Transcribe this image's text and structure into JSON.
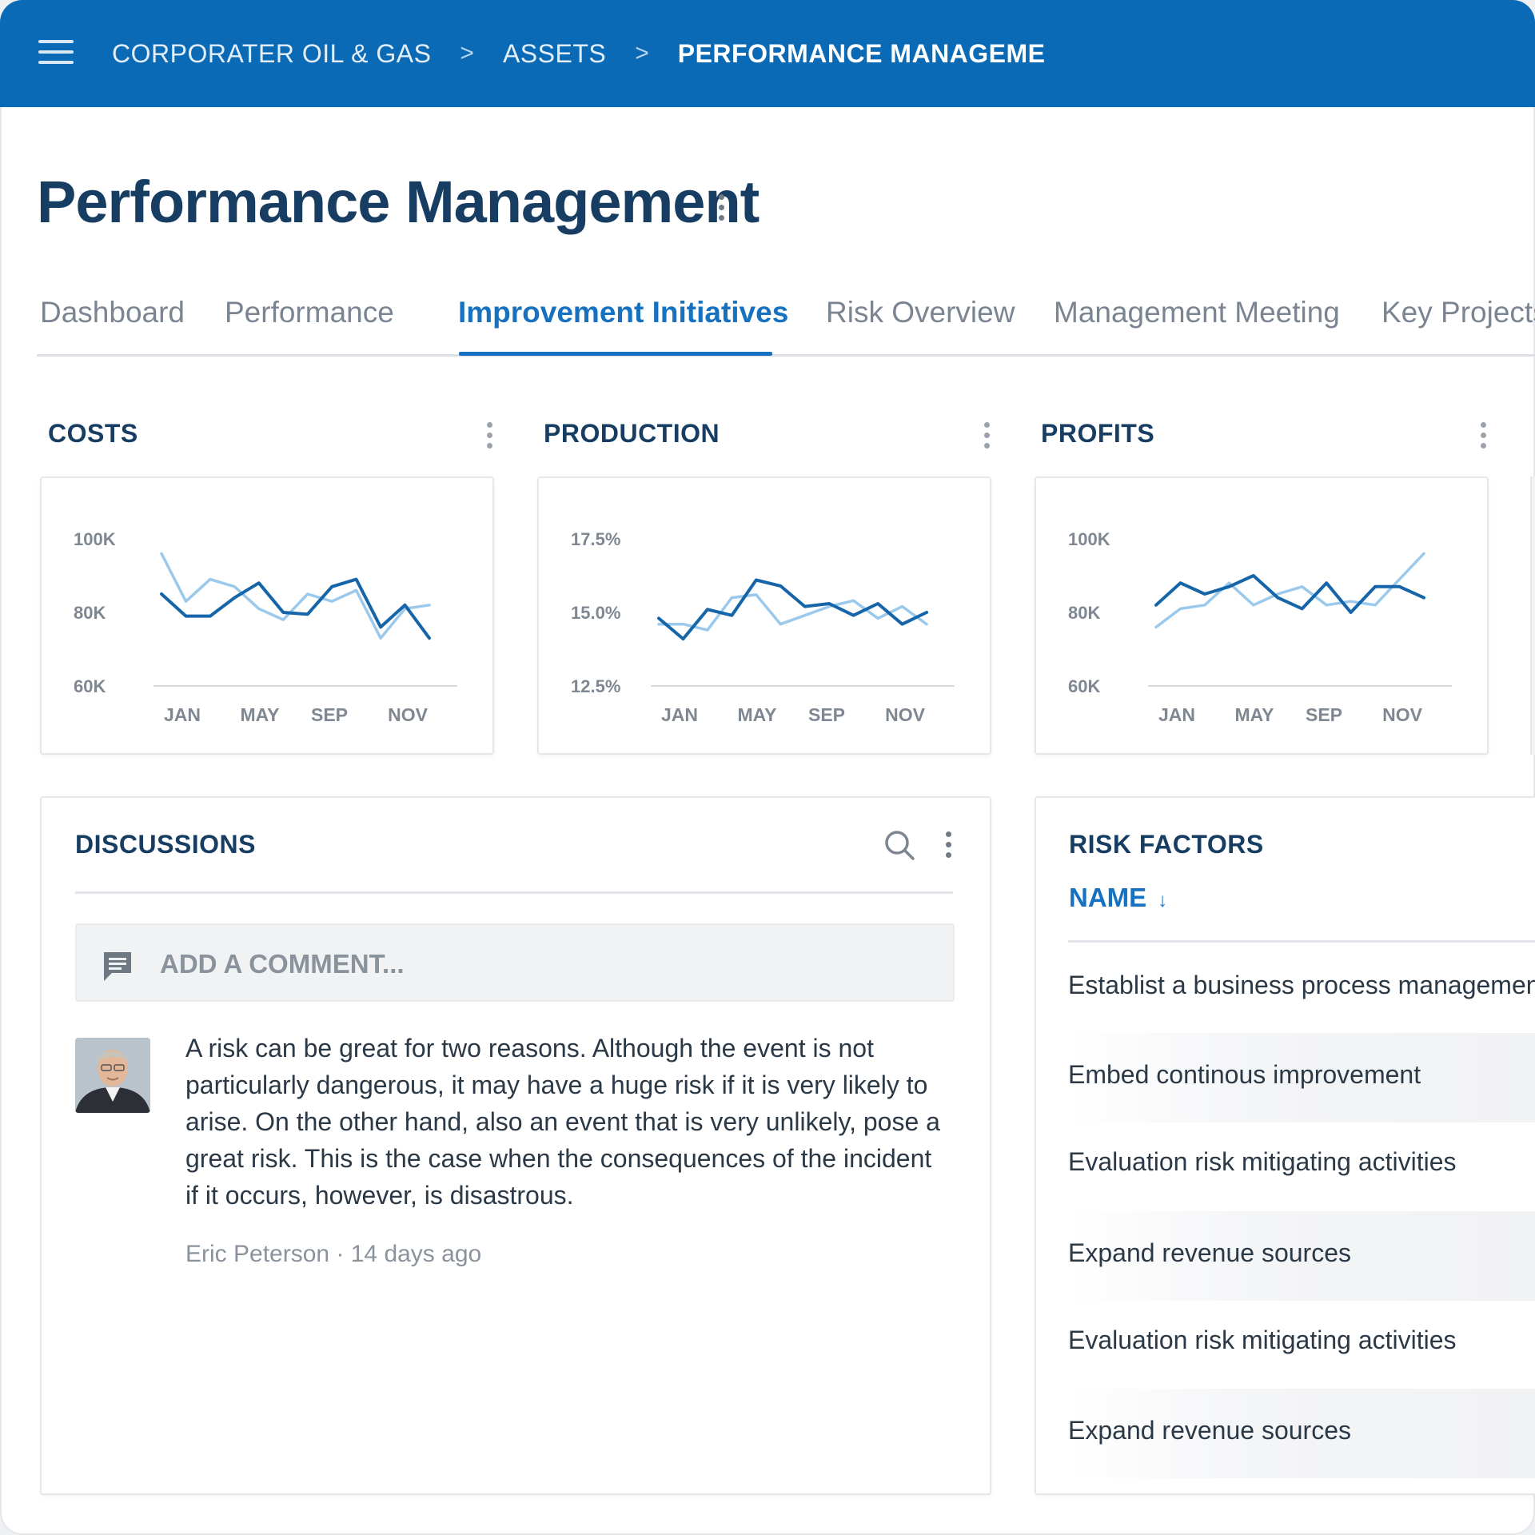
{
  "topbar": {
    "breadcrumbs": [
      "CORPORATER OIL & GAS",
      "ASSETS",
      "PERFORMANCE MANAGEME"
    ],
    "separator": ">"
  },
  "page": {
    "title": "Performance Management"
  },
  "tabs": [
    {
      "label": "Dashboard",
      "active": false
    },
    {
      "label": "Performance",
      "active": false
    },
    {
      "label": "Improvement Initiatives",
      "active": true
    },
    {
      "label": "Risk Overview",
      "active": false
    },
    {
      "label": "Management Meeting",
      "active": false
    },
    {
      "label": "Key Projects",
      "active": false
    }
  ],
  "colors": {
    "brand": "#0a6ab5",
    "accent": "#1672c0",
    "title": "#173e62",
    "series_dark": "#1565a8",
    "series_light": "#9bc9ec"
  },
  "chart_data": [
    {
      "type": "line",
      "title": "COSTS",
      "y_tick_labels": [
        "100K",
        "80K",
        "60K"
      ],
      "y_ticks": [
        100000,
        80000,
        60000
      ],
      "ylim": [
        60000,
        100000
      ],
      "x_tick_labels": [
        "JAN",
        "MAY",
        "SEP",
        "NOV"
      ],
      "series": [
        {
          "values": [
            85000,
            79000,
            79000,
            84000,
            88000,
            80000,
            79500,
            87000,
            89000,
            76000,
            82000,
            73000
          ]
        },
        {
          "values": [
            96000,
            83000,
            89000,
            87000,
            81000,
            78000,
            85000,
            83000,
            86000,
            73000,
            81000,
            82000
          ]
        }
      ]
    },
    {
      "type": "line",
      "title": "PRODUCTION",
      "y_tick_labels": [
        "17.5%",
        "15.0%",
        "12.5%"
      ],
      "y_ticks": [
        17.5,
        15.0,
        12.5
      ],
      "ylim": [
        12.5,
        17.5
      ],
      "x_tick_labels": [
        "JAN",
        "MAY",
        "SEP",
        "NOV"
      ],
      "series": [
        {
          "values": [
            14.8,
            14.1,
            15.1,
            14.9,
            16.1,
            15.9,
            15.2,
            15.3,
            14.9,
            15.3,
            14.6,
            15.0
          ]
        },
        {
          "values": [
            14.6,
            14.6,
            14.4,
            15.5,
            15.6,
            14.6,
            14.9,
            15.2,
            15.4,
            14.8,
            15.2,
            14.6
          ]
        }
      ]
    },
    {
      "type": "line",
      "title": "PROFITS",
      "y_tick_labels": [
        "100K",
        "80K",
        "60K"
      ],
      "y_ticks": [
        100000,
        80000,
        60000
      ],
      "ylim": [
        60000,
        100000
      ],
      "x_tick_labels": [
        "JAN",
        "MAY",
        "SEP",
        "NOV"
      ],
      "series": [
        {
          "values": [
            82000,
            88000,
            85000,
            87000,
            90000,
            84000,
            81000,
            88000,
            80000,
            87000,
            87000,
            84000
          ]
        },
        {
          "values": [
            76000,
            81000,
            82000,
            88000,
            82000,
            85000,
            87000,
            82000,
            83000,
            82000,
            89000,
            96000
          ]
        }
      ]
    }
  ],
  "discussions": {
    "title": "DISCUSSIONS",
    "comment_placeholder": "ADD A COMMENT...",
    "comments": [
      {
        "text": "A risk can be great for two reasons. Although the event is not particularly dangerous, it may have a huge risk if it is very likely to arise. On the other hand, also an event that is very unlikely, pose a great risk. This is the case when the consequences of the incident if it occurs, however, is disastrous.",
        "meta": "Eric Peterson · 14 days ago"
      }
    ]
  },
  "risk_factors": {
    "title": "RISK FACTORS",
    "column_header": "NAME",
    "sort_icon": "arrow-down-icon",
    "rows": [
      "Establist a business process management",
      "Embed continous improvement",
      "Evaluation risk mitigating activities",
      "Expand revenue sources",
      "Evaluation risk mitigating activities",
      "Expand revenue sources"
    ]
  }
}
